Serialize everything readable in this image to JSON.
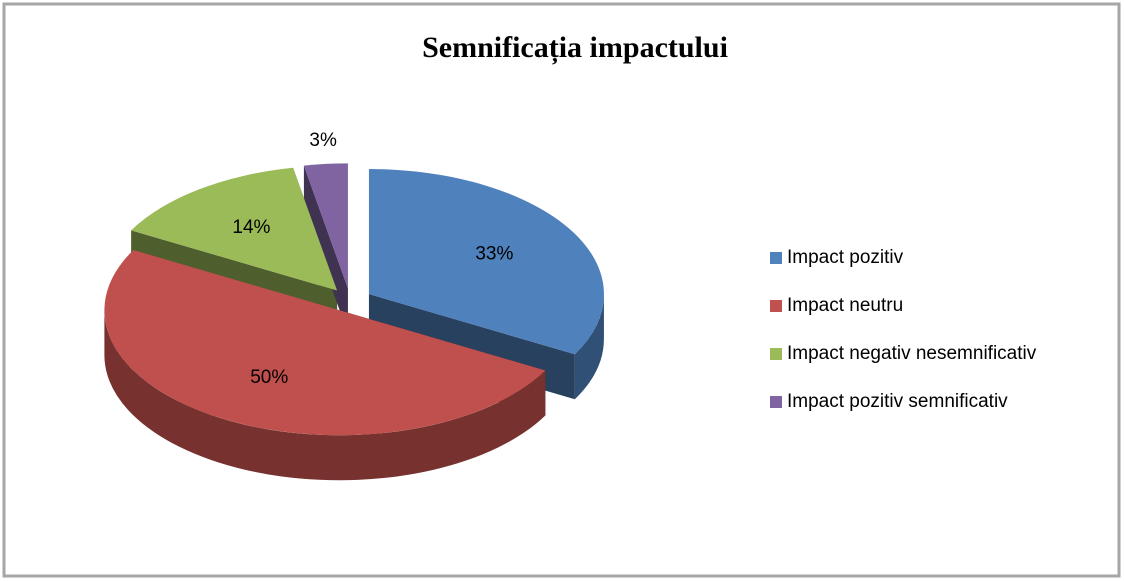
{
  "chart_data": {
    "type": "pie",
    "title": "Semnificația impactului",
    "categories": [
      "Impact pozitiv",
      "Impact neutru",
      "Impact negativ nesemnificativ",
      "Impact pozitiv semnificativ"
    ],
    "values": [
      33,
      50,
      14,
      3
    ],
    "value_labels": [
      "33%",
      "50%",
      "14%",
      "3%"
    ],
    "colors": [
      "#4f81bd",
      "#c0504d",
      "#9bbb59",
      "#8064a2"
    ],
    "legend": "right"
  }
}
